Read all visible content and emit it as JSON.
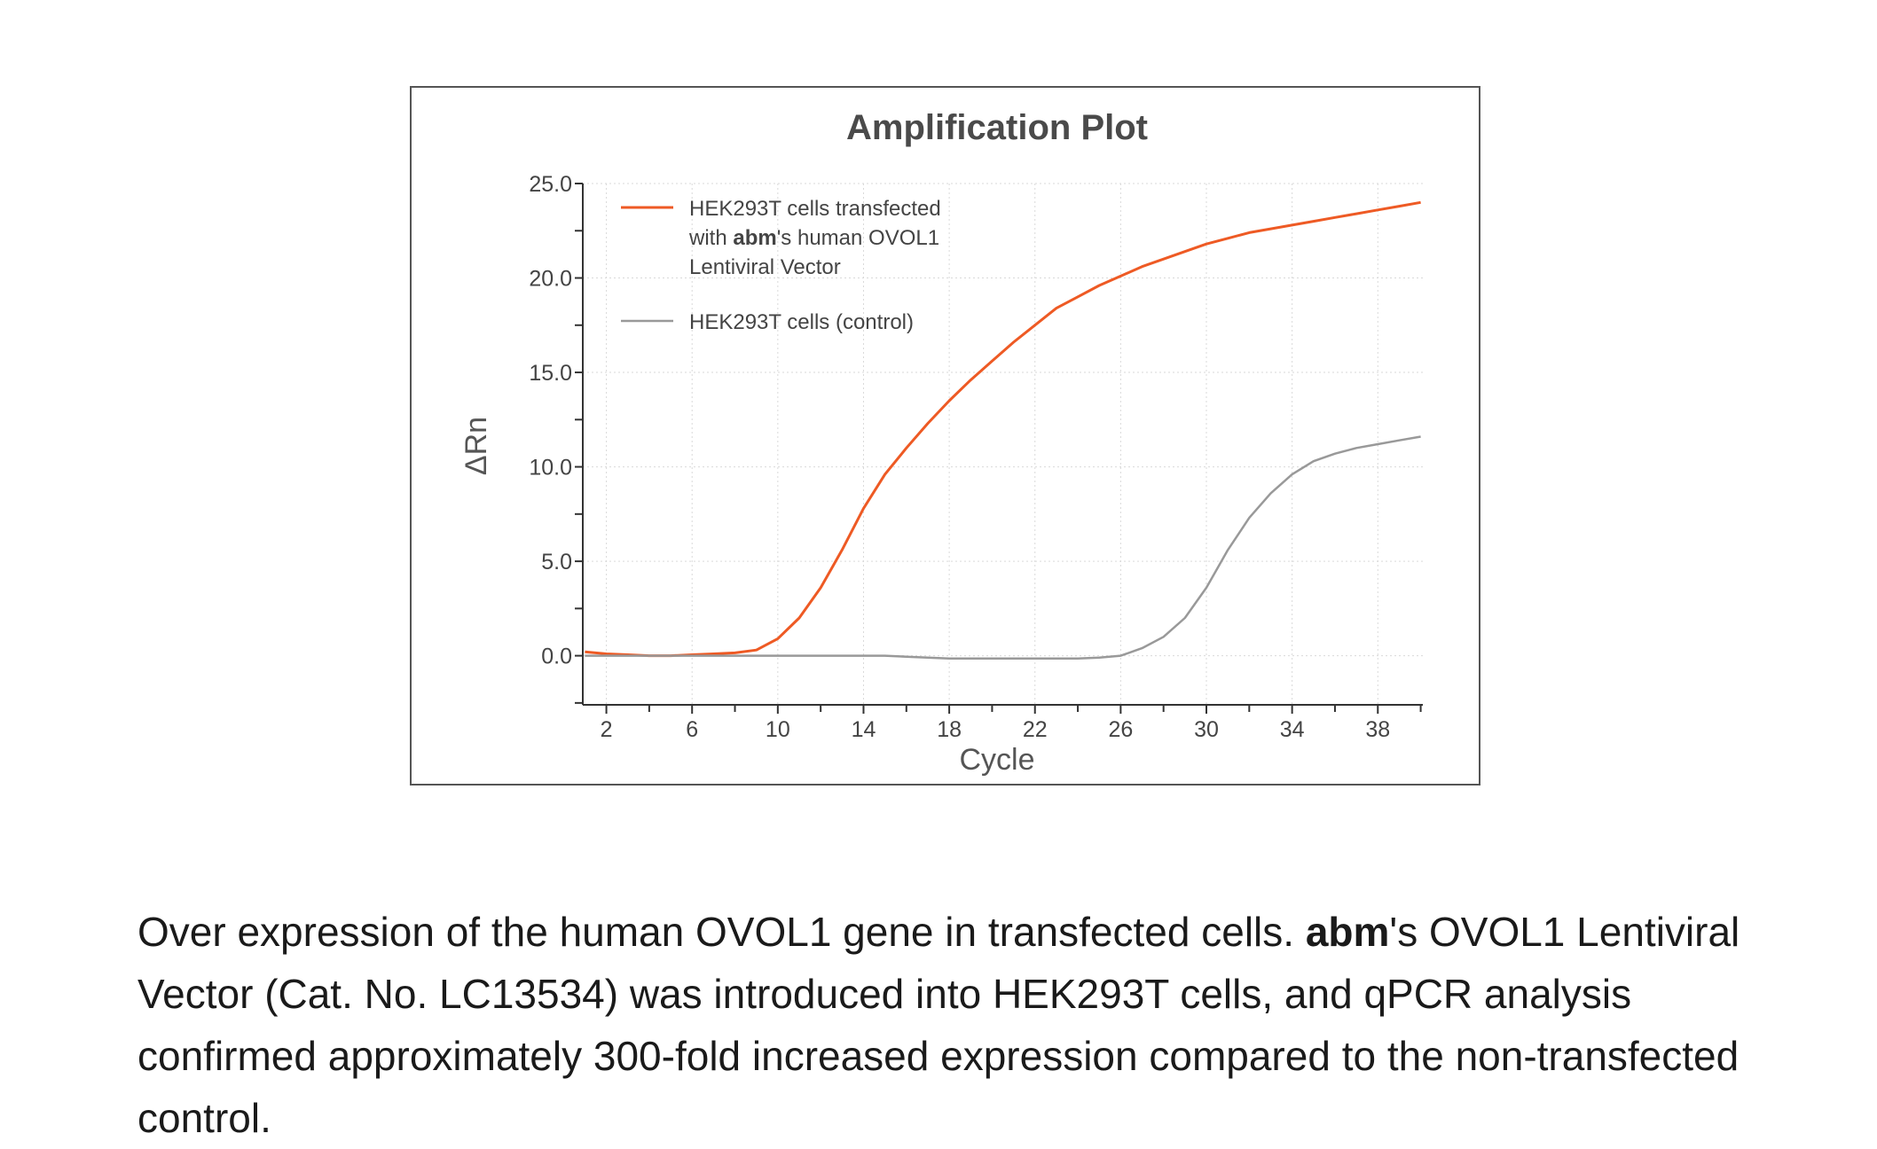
{
  "colors": {
    "transfected": "#EE5A24",
    "control": "#999999",
    "axis": "#333333",
    "grid": "#d9d9d9",
    "title": "#4a4a4a"
  },
  "chart_data": {
    "type": "line",
    "title": "Amplification Plot",
    "xlabel": "Cycle",
    "ylabel": "ΔRn",
    "xlim": [
      0.9,
      40.1
    ],
    "ylim": [
      -2.6,
      25.0
    ],
    "xticks": [
      2,
      6,
      10,
      14,
      18,
      22,
      26,
      30,
      34,
      38
    ],
    "yticks": [
      0.0,
      5.0,
      10.0,
      15.0,
      20.0,
      25.0
    ],
    "ytick_labels": [
      "0.0",
      "5.0",
      "10.0",
      "15.0",
      "20.0",
      "25.0"
    ],
    "grid": true,
    "legend_position": "top-left",
    "series": [
      {
        "name": "HEK293T cells transfected with abm's human OVOL1 Lentiviral Vector",
        "legend_lines": [
          "HEK293T cells transfected",
          "with |abm|'s human OVOL1",
          "Lentiviral Vector"
        ],
        "color_key": "transfected",
        "x": [
          1,
          2,
          3,
          4,
          5,
          6,
          7,
          8,
          9,
          10,
          11,
          12,
          13,
          14,
          15,
          16,
          17,
          18,
          19,
          20,
          21,
          22,
          23,
          24,
          25,
          26,
          27,
          28,
          29,
          30,
          31,
          32,
          33,
          34,
          35,
          36,
          37,
          38,
          39,
          40
        ],
        "y": [
          0.2,
          0.1,
          0.05,
          0.0,
          0.0,
          0.05,
          0.1,
          0.15,
          0.3,
          0.9,
          2.0,
          3.6,
          5.6,
          7.8,
          9.6,
          11.0,
          12.3,
          13.5,
          14.6,
          15.6,
          16.6,
          17.5,
          18.4,
          19.0,
          19.6,
          20.1,
          20.6,
          21.0,
          21.4,
          21.8,
          22.1,
          22.4,
          22.6,
          22.8,
          23.0,
          23.2,
          23.4,
          23.6,
          23.8,
          24.0
        ]
      },
      {
        "name": "HEK293T cells (control)",
        "legend_lines": [
          "HEK293T cells (control)"
        ],
        "color_key": "control",
        "x": [
          1,
          2,
          3,
          4,
          5,
          6,
          7,
          8,
          9,
          10,
          11,
          12,
          13,
          14,
          15,
          16,
          17,
          18,
          19,
          20,
          21,
          22,
          23,
          24,
          25,
          26,
          27,
          28,
          29,
          30,
          31,
          32,
          33,
          34,
          35,
          36,
          37,
          38,
          39,
          40
        ],
        "y": [
          0.0,
          0.0,
          0.0,
          0.0,
          0.0,
          0.0,
          0.0,
          0.0,
          0.0,
          0.0,
          0.0,
          0.0,
          0.0,
          0.0,
          0.0,
          -0.05,
          -0.1,
          -0.15,
          -0.15,
          -0.15,
          -0.15,
          -0.15,
          -0.15,
          -0.15,
          -0.1,
          0.0,
          0.4,
          1.0,
          2.0,
          3.6,
          5.6,
          7.3,
          8.6,
          9.6,
          10.3,
          10.7,
          11.0,
          11.2,
          11.4,
          11.6
        ]
      }
    ]
  },
  "caption": {
    "part1": "Over expression of the human OVOL1 gene in transfected cells. ",
    "bold": "abm",
    "part2": "'s OVOL1 Lentiviral Vector (Cat. No. LC13534) was introduced into HEK293T cells, and qPCR analysis confirmed approximately 300-fold increased expression compared to the non-transfected control."
  }
}
